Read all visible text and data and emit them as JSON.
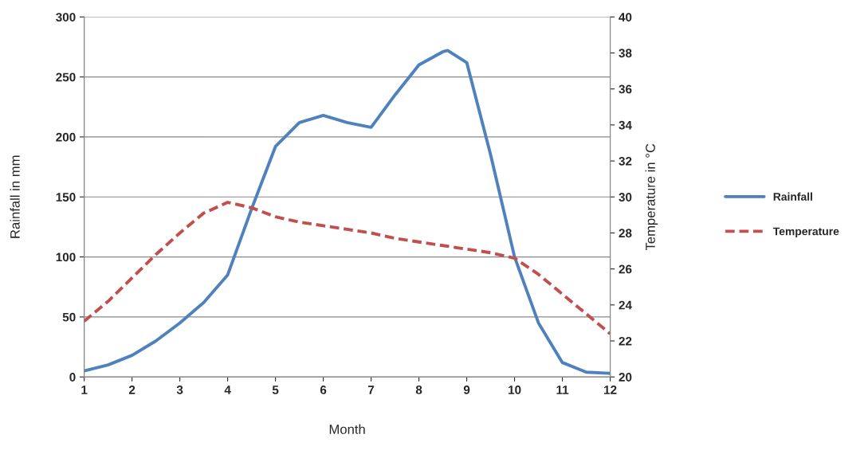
{
  "chart_data": {
    "type": "line",
    "xlabel": "Month",
    "ylabel": "Rainfall in mm",
    "y2label": "Temperature in °C",
    "xlim": [
      1,
      12
    ],
    "xticks": [
      1,
      2,
      3,
      4,
      5,
      6,
      7,
      8,
      9,
      10,
      11,
      12
    ],
    "ylim": [
      0,
      300
    ],
    "yticks": [
      0,
      50,
      100,
      150,
      200,
      250,
      300
    ],
    "y2lim": [
      20,
      40
    ],
    "y2ticks": [
      20,
      22,
      24,
      26,
      28,
      30,
      32,
      34,
      36,
      38,
      40
    ],
    "grid": "y",
    "legend": "right",
    "series": [
      {
        "name": "Rainfall",
        "color": "#4f81bd",
        "line_style": "solid",
        "x": [
          1,
          1.5,
          2,
          2.5,
          3,
          3.5,
          4,
          4.5,
          5,
          5.5,
          6,
          6.5,
          7,
          7.5,
          8,
          8.5,
          8.6,
          9,
          9.5,
          10,
          10.5,
          11,
          11.5,
          12
        ],
        "values": [
          5,
          10,
          18,
          30,
          45,
          62,
          85,
          140,
          192,
          212,
          218,
          212,
          208,
          235,
          260,
          271,
          272,
          262,
          185,
          100,
          45,
          12,
          4,
          3
        ]
      },
      {
        "name": "Temperature",
        "color": "#c0504d",
        "line_style": "dashed",
        "axis": "y2",
        "x": [
          1,
          1.5,
          2,
          2.5,
          3,
          3.5,
          4,
          4.5,
          5,
          5.5,
          6,
          6.5,
          7,
          7.5,
          8,
          8.5,
          9,
          9.5,
          10,
          10.5,
          11,
          11.5,
          12
        ],
        "values": [
          23.1,
          24.2,
          25.5,
          26.8,
          28,
          29.1,
          29.7,
          29.4,
          28.9,
          28.6,
          28.4,
          28.2,
          28,
          27.7,
          27.5,
          27.3,
          27.1,
          26.9,
          26.6,
          25.7,
          24.6,
          23.5,
          22.4
        ]
      }
    ]
  }
}
